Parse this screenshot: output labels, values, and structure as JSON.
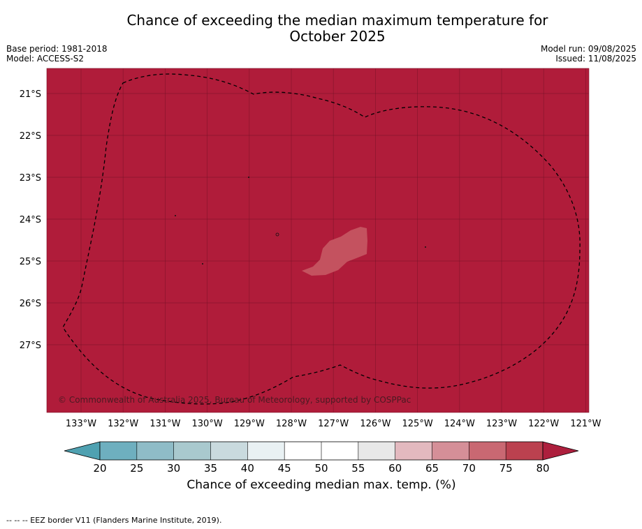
{
  "header": {
    "title_line1": "Chance of exceeding the median maximum temperature for",
    "title_line2": "October 2025",
    "base_period": "Base period: 1981-2018",
    "model": "Model: ACCESS-S2",
    "model_run": "Model run: 09/08/2025",
    "issued": "Issued: 11/08/2025"
  },
  "map": {
    "fill_color": "#b01c3a",
    "anomaly_patch_color": "#c4525f",
    "lat_labels": [
      "21°S",
      "22°S",
      "23°S",
      "24°S",
      "25°S",
      "26°S",
      "27°S"
    ],
    "lat_values": [
      -21,
      -22,
      -23,
      -24,
      -25,
      -26,
      -27
    ],
    "lon_labels": [
      "133°W",
      "132°W",
      "131°W",
      "130°W",
      "129°W",
      "128°W",
      "127°W",
      "126°W",
      "125°W",
      "124°W",
      "123°W",
      "122°W",
      "121°W"
    ],
    "lon_values": [
      -133,
      -132,
      -131,
      -130,
      -129,
      -128,
      -127,
      -126,
      -125,
      -124,
      -123,
      -122,
      -121
    ],
    "copyright": "© Commonwealth of Australia 2025, Bureau of Meteorology, supported by COSPPac"
  },
  "colorbar": {
    "ticks": [
      "20",
      "25",
      "30",
      "35",
      "40",
      "45",
      "50",
      "55",
      "60",
      "65",
      "70",
      "75",
      "80"
    ],
    "colors": [
      "#6eafbf",
      "#8fbcc7",
      "#a9c9ce",
      "#c9dade",
      "#e9f1f3",
      "#ffffff",
      "#ffffff",
      "#e8e8e8",
      "#e3b9bf",
      "#d58f98",
      "#c96872",
      "#bb414f"
    ],
    "under_color": "#4fa1b1",
    "over_color": "#ad1f3d",
    "label": "Chance of exceeding median max. temp. (%)"
  },
  "footnote": "--  --  -- EEZ border V11 (Flanders Marine Institute, 2019)."
}
